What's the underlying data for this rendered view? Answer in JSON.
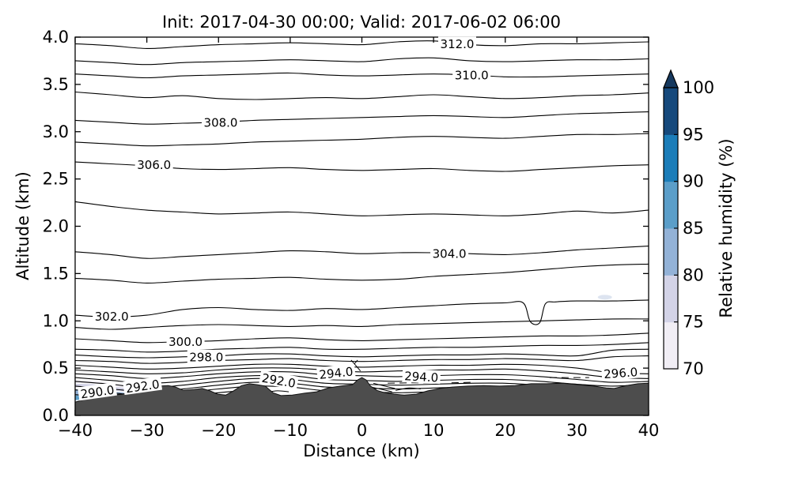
{
  "chart_data": {
    "type": "contour",
    "title": "Init: 2017-04-30 00:00; Valid: 2017-06-02 06:00",
    "xlabel": "Distance (km)",
    "ylabel": "Altitude (km)",
    "xlim": [
      -40,
      40
    ],
    "ylim": [
      0,
      4
    ],
    "xticks": [
      -40,
      -30,
      -20,
      -10,
      0,
      10,
      20,
      30,
      40
    ],
    "yticks": [
      0.0,
      0.5,
      1.0,
      1.5,
      2.0,
      2.5,
      3.0,
      3.5,
      4.0
    ],
    "grid": false,
    "line_color": "#000000",
    "contour_interval": 1.0,
    "labeled_levels": [
      290.0,
      292.0,
      294.0,
      296.0,
      298.0,
      300.0,
      302.0,
      304.0,
      306.0,
      308.0,
      310.0,
      312.0
    ],
    "x_stations": [
      -40,
      -35,
      -30,
      -25,
      -20,
      -15,
      -10,
      -5,
      0,
      5,
      10,
      15,
      20,
      25,
      30,
      35,
      40
    ],
    "contours": [
      {
        "level": 312,
        "alt": [
          3.93,
          3.91,
          3.88,
          3.9,
          3.92,
          3.93,
          3.94,
          3.93,
          3.92,
          3.95,
          3.96,
          3.92,
          3.91,
          3.93,
          3.93,
          3.94,
          3.95
        ]
      },
      {
        "level": 311,
        "alt": [
          3.75,
          3.73,
          3.71,
          3.73,
          3.74,
          3.75,
          3.76,
          3.75,
          3.74,
          3.77,
          3.78,
          3.75,
          3.74,
          3.75,
          3.76,
          3.76,
          3.77
        ]
      },
      {
        "level": 310,
        "alt": [
          3.61,
          3.59,
          3.57,
          3.59,
          3.6,
          3.61,
          3.62,
          3.6,
          3.59,
          3.6,
          3.61,
          3.6,
          3.58,
          3.58,
          3.59,
          3.6,
          3.61
        ]
      },
      {
        "level": 309,
        "alt": [
          3.42,
          3.39,
          3.36,
          3.38,
          3.35,
          3.34,
          3.35,
          3.36,
          3.35,
          3.37,
          3.39,
          3.37,
          3.35,
          3.36,
          3.38,
          3.39,
          3.41
        ]
      },
      {
        "level": 308,
        "alt": [
          3.12,
          3.1,
          3.08,
          3.09,
          3.1,
          3.12,
          3.13,
          3.14,
          3.15,
          3.16,
          3.17,
          3.16,
          3.15,
          3.17,
          3.19,
          3.2,
          3.21
        ]
      },
      {
        "level": 307,
        "alt": [
          2.89,
          2.87,
          2.85,
          2.86,
          2.87,
          2.89,
          2.9,
          2.91,
          2.92,
          2.94,
          2.95,
          2.94,
          2.93,
          2.95,
          2.97,
          2.97,
          2.98
        ]
      },
      {
        "level": 306,
        "alt": [
          2.68,
          2.66,
          2.64,
          2.61,
          2.6,
          2.61,
          2.62,
          2.6,
          2.59,
          2.6,
          2.61,
          2.59,
          2.58,
          2.6,
          2.62,
          2.64,
          2.65
        ]
      },
      {
        "level": 305,
        "alt": [
          2.26,
          2.21,
          2.17,
          2.15,
          2.13,
          2.14,
          2.15,
          2.13,
          2.11,
          2.12,
          2.13,
          2.12,
          2.11,
          2.13,
          2.16,
          2.14,
          2.17
        ]
      },
      {
        "level": 304,
        "alt": [
          1.73,
          1.7,
          1.66,
          1.68,
          1.7,
          1.72,
          1.74,
          1.73,
          1.71,
          1.72,
          1.72,
          1.71,
          1.7,
          1.72,
          1.75,
          1.77,
          1.79
        ]
      },
      {
        "level": 303,
        "alt": [
          1.45,
          1.43,
          1.4,
          1.42,
          1.44,
          1.45,
          1.46,
          1.44,
          1.43,
          1.44,
          1.47,
          1.49,
          1.51,
          1.54,
          1.57,
          1.59,
          1.6
        ]
      },
      {
        "level": 302,
        "pts": [
          [
            -40,
            1.06
          ],
          [
            -35,
            1.04
          ],
          [
            -30,
            1.06
          ],
          [
            -25,
            1.12
          ],
          [
            -20,
            1.14
          ],
          [
            -15,
            1.12
          ],
          [
            -10,
            1.11
          ],
          [
            -5,
            1.13
          ],
          [
            0,
            1.12
          ],
          [
            5,
            1.14
          ],
          [
            10,
            1.16
          ],
          [
            15,
            1.18
          ],
          [
            20,
            1.19
          ],
          [
            22.5,
            1.19
          ],
          [
            23.5,
            0.99
          ],
          [
            24.8,
            0.98
          ],
          [
            25.6,
            1.18
          ],
          [
            27,
            1.2
          ],
          [
            30,
            1.21
          ],
          [
            35,
            1.21
          ],
          [
            40,
            1.22
          ]
        ]
      },
      {
        "level": 301,
        "alt": [
          0.93,
          0.91,
          0.93,
          0.95,
          0.96,
          0.95,
          0.94,
          0.95,
          0.94,
          0.96,
          0.97,
          0.98,
          0.99,
          1.0,
          1.01,
          1.02,
          1.02
        ]
      },
      {
        "level": 300,
        "alt": [
          0.81,
          0.79,
          0.77,
          0.78,
          0.79,
          0.81,
          0.82,
          0.8,
          0.79,
          0.8,
          0.81,
          0.82,
          0.83,
          0.84,
          0.84,
          0.85,
          0.87
        ]
      },
      {
        "level": 299,
        "alt": [
          0.7,
          0.69,
          0.67,
          0.68,
          0.7,
          0.71,
          0.72,
          0.7,
          0.7,
          0.71,
          0.72,
          0.72,
          0.73,
          0.74,
          0.74,
          0.75,
          0.77
        ]
      },
      {
        "level": 298,
        "alt": [
          0.64,
          0.62,
          0.61,
          0.62,
          0.63,
          0.65,
          0.65,
          0.63,
          0.62,
          0.63,
          0.64,
          0.64,
          0.65,
          0.64,
          0.63,
          0.69,
          0.7
        ]
      },
      {
        "level": 297,
        "alt": [
          0.58,
          0.57,
          0.55,
          0.56,
          0.58,
          0.59,
          0.6,
          0.58,
          0.57,
          0.58,
          0.59,
          0.59,
          0.6,
          0.59,
          0.58,
          0.62,
          0.63
        ]
      },
      {
        "level": 296,
        "alt": [
          0.53,
          0.51,
          0.49,
          0.5,
          0.52,
          0.54,
          0.54,
          0.52,
          0.51,
          0.52,
          0.53,
          0.53,
          0.54,
          0.53,
          0.5,
          0.45,
          0.44
        ]
      },
      {
        "level": 295,
        "alt": [
          0.48,
          0.46,
          0.44,
          0.45,
          0.48,
          0.5,
          0.5,
          0.48,
          0.46,
          0.47,
          0.48,
          0.48,
          0.49,
          0.47,
          0.44,
          0.4,
          0.39
        ]
      },
      {
        "level": 294,
        "alt": [
          0.44,
          0.42,
          0.39,
          0.41,
          0.44,
          0.46,
          0.46,
          0.43,
          0.42,
          0.41,
          0.42,
          0.43,
          0.43,
          0.41,
          0.38,
          0.35,
          0.36
        ]
      },
      {
        "level": 293,
        "alt": [
          0.4,
          0.37,
          0.34,
          0.36,
          0.4,
          0.42,
          0.42,
          0.38,
          0.37,
          0.36,
          0.37,
          0.38,
          0.38,
          0.36,
          0.33,
          0.31,
          0.33
        ]
      },
      {
        "level": 292,
        "alt": [
          0.36,
          0.33,
          0.29,
          0.32,
          0.36,
          0.39,
          0.38,
          0.34,
          0.33,
          0.32,
          0.33,
          0.34,
          0.34,
          0.32,
          0.3,
          0.28,
          0.3
        ]
      },
      {
        "level": 291,
        "alt": [
          0.31,
          0.28,
          0.25,
          0.28,
          0.32,
          0.35,
          0.34,
          0.3,
          0.29,
          0.28,
          0.29,
          0.3,
          0.3,
          0.28,
          0.26,
          0.25,
          0.27
        ]
      },
      {
        "level": 290,
        "alt": [
          0.27,
          0.24,
          0.21,
          0.24,
          0.28,
          0.31,
          0.3,
          0.26,
          0.25,
          0.24,
          0.25,
          0.26,
          0.26,
          0.25,
          0.23,
          0.22,
          0.24
        ]
      },
      {
        "level": 289,
        "pts": [
          [
            -40,
            0.22
          ],
          [
            -35,
            0.19
          ],
          [
            -30,
            0.17
          ],
          [
            -25,
            0.2
          ],
          [
            -20,
            0.24
          ],
          [
            -17,
            0.26
          ]
        ]
      }
    ],
    "contour_labels": [
      {
        "text": "312.0",
        "x": 13.3,
        "alt": 3.93,
        "rot": 0
      },
      {
        "text": "310.0",
        "x": 15.3,
        "alt": 3.6,
        "rot": 0
      },
      {
        "text": "308.0",
        "x": -19.7,
        "alt": 3.1,
        "rot": 0
      },
      {
        "text": "306.0",
        "x": -29.0,
        "alt": 2.65,
        "rot": 0
      },
      {
        "text": "304.0",
        "x": 12.2,
        "alt": 1.71,
        "rot": 0
      },
      {
        "text": "302.0",
        "x": -34.9,
        "alt": 1.05,
        "rot": 0
      },
      {
        "text": "300.0",
        "x": -24.6,
        "alt": 0.78,
        "rot": 0
      },
      {
        "text": "298.0",
        "x": -21.7,
        "alt": 0.62,
        "rot": 0
      },
      {
        "text": "296.0",
        "x": 36.1,
        "alt": 0.45,
        "rot": -4
      },
      {
        "text": "294.0",
        "x": -3.6,
        "alt": 0.45,
        "rot": -6
      },
      {
        "text": "294.0",
        "x": 8.3,
        "alt": 0.41,
        "rot": 3
      },
      {
        "text": "292.0",
        "x": -30.6,
        "alt": 0.31,
        "rot": -8
      },
      {
        "text": "292.0",
        "x": -11.6,
        "alt": 0.37,
        "rot": 10
      },
      {
        "text": "290.0",
        "x": -36.9,
        "alt": 0.25,
        "rot": -8
      }
    ],
    "fragments": [
      {
        "pts": [
          [
            3.6,
            0.34
          ],
          [
            8.0,
            0.345
          ],
          [
            10.8,
            0.34
          ]
        ],
        "dash": true
      },
      {
        "pts": [
          [
            26.2,
            0.4
          ],
          [
            31.7,
            0.4
          ]
        ],
        "dash": true
      },
      {
        "pts": [
          [
            12.5,
            0.345
          ],
          [
            15.5,
            0.35
          ]
        ],
        "dash": true
      },
      {
        "pts": [
          [
            1.3,
            0.3
          ],
          [
            2.8,
            0.275
          ],
          [
            4.2,
            0.25
          ]
        ],
        "dash": false
      },
      {
        "pts": [
          [
            1.6,
            0.34
          ],
          [
            3.2,
            0.31
          ],
          [
            4.6,
            0.285
          ]
        ],
        "dash": false
      },
      {
        "pts": [
          [
            4.7,
            0.265
          ],
          [
            6.6,
            0.29
          ],
          [
            8.2,
            0.28
          ]
        ],
        "dash": false
      },
      {
        "pts": [
          [
            -13.5,
            0.24
          ],
          [
            -11.8,
            0.26
          ],
          [
            -10.2,
            0.25
          ]
        ],
        "dash": false
      },
      {
        "pts": [
          [
            -1.9,
            0.47
          ],
          [
            -0.6,
            0.585
          ]
        ],
        "dash": false
      },
      {
        "pts": [
          [
            -1.5,
            0.585
          ],
          [
            -0.2,
            0.47
          ]
        ],
        "dash": false
      }
    ],
    "terrain": {
      "color": "#4d4d4d",
      "profile": [
        [
          -40,
          0.14
        ],
        [
          -38.3,
          0.175
        ],
        [
          -36.6,
          0.19
        ],
        [
          -35,
          0.215
        ],
        [
          -33.4,
          0.225
        ],
        [
          -31.7,
          0.26
        ],
        [
          -30,
          0.29
        ],
        [
          -28.4,
          0.31
        ],
        [
          -27,
          0.315
        ],
        [
          -26,
          0.3
        ],
        [
          -24.9,
          0.265
        ],
        [
          -23.4,
          0.275
        ],
        [
          -22.3,
          0.285
        ],
        [
          -21.2,
          0.26
        ],
        [
          -20.1,
          0.225
        ],
        [
          -19,
          0.215
        ],
        [
          -17.9,
          0.26
        ],
        [
          -16.8,
          0.315
        ],
        [
          -15.7,
          0.335
        ],
        [
          -14.6,
          0.325
        ],
        [
          -13.5,
          0.31
        ],
        [
          -12.4,
          0.24
        ],
        [
          -11.3,
          0.21
        ],
        [
          -9.7,
          0.215
        ],
        [
          -8,
          0.235
        ],
        [
          -6.3,
          0.25
        ],
        [
          -4.7,
          0.29
        ],
        [
          -3,
          0.31
        ],
        [
          -1.3,
          0.325
        ],
        [
          -0.6,
          0.375
        ],
        [
          0,
          0.4
        ],
        [
          0.6,
          0.375
        ],
        [
          1.2,
          0.31
        ],
        [
          2.1,
          0.265
        ],
        [
          3.2,
          0.24
        ],
        [
          4.5,
          0.225
        ],
        [
          5.9,
          0.215
        ],
        [
          7.6,
          0.225
        ],
        [
          9.2,
          0.26
        ],
        [
          10.9,
          0.285
        ],
        [
          12.6,
          0.3
        ],
        [
          14.8,
          0.31
        ],
        [
          17,
          0.315
        ],
        [
          19.2,
          0.31
        ],
        [
          21.4,
          0.315
        ],
        [
          23.6,
          0.335
        ],
        [
          25.8,
          0.335
        ],
        [
          28,
          0.34
        ],
        [
          30.2,
          0.325
        ],
        [
          32.4,
          0.31
        ],
        [
          34.1,
          0.29
        ],
        [
          35.2,
          0.285
        ],
        [
          36.9,
          0.315
        ],
        [
          38.5,
          0.335
        ],
        [
          40,
          0.34
        ]
      ]
    },
    "humidity_fills": [
      {
        "color": "#f1eef5",
        "pts": [
          [
            -40,
            0.375
          ],
          [
            -37,
            0.36
          ],
          [
            -34,
            0.33
          ],
          [
            -31,
            0.3
          ],
          [
            -28.5,
            0.275
          ],
          [
            -26,
            0.26
          ],
          [
            -24.5,
            0.25
          ],
          [
            -26,
            0.245
          ],
          [
            -28.5,
            0.255
          ],
          [
            -31,
            0.275
          ],
          [
            -34,
            0.3
          ],
          [
            -37,
            0.335
          ],
          [
            -40,
            0.345
          ]
        ]
      },
      {
        "color": "#d3d3e7",
        "pts": [
          [
            -40,
            0.335
          ],
          [
            -37.5,
            0.33
          ],
          [
            -35,
            0.305
          ],
          [
            -32.5,
            0.285
          ],
          [
            -30,
            0.265
          ],
          [
            -28,
            0.25
          ],
          [
            -26.5,
            0.245
          ],
          [
            -28,
            0.235
          ],
          [
            -30,
            0.24
          ],
          [
            -32.5,
            0.25
          ],
          [
            -35,
            0.265
          ],
          [
            -37.5,
            0.295
          ],
          [
            -40,
            0.3
          ]
        ]
      },
      {
        "color": "#93b2d7",
        "pts": [
          [
            -40,
            0.275
          ],
          [
            -38,
            0.285
          ],
          [
            -36.5,
            0.27
          ],
          [
            -35,
            0.25
          ],
          [
            -33.5,
            0.245
          ],
          [
            -32.5,
            0.23
          ],
          [
            -33.5,
            0.215
          ],
          [
            -35,
            0.215
          ],
          [
            -36.5,
            0.2
          ],
          [
            -38,
            0.185
          ],
          [
            -39,
            0.17
          ],
          [
            -40,
            0.16
          ]
        ]
      },
      {
        "color": "#5b9ec9",
        "pts": [
          [
            -40,
            0.21
          ],
          [
            -38.5,
            0.2
          ],
          [
            -37,
            0.21
          ],
          [
            -36,
            0.215
          ],
          [
            -37,
            0.19
          ],
          [
            -38.5,
            0.175
          ],
          [
            -40,
            0.16
          ]
        ]
      }
    ],
    "humidity_spots": [
      {
        "x": 33.9,
        "alt": 1.25,
        "color": "#dde4f0"
      }
    ],
    "colorbar": {
      "label": "Relative humidity (%)",
      "ticks": [
        70,
        75,
        80,
        85,
        90,
        95,
        100
      ],
      "segment_colors": [
        "#f1eef5",
        "#d3d3e7",
        "#93b2d7",
        "#5b9ec9",
        "#1b7db9",
        "#16497c"
      ],
      "extend": "max",
      "extend_color": "#16395f"
    }
  }
}
